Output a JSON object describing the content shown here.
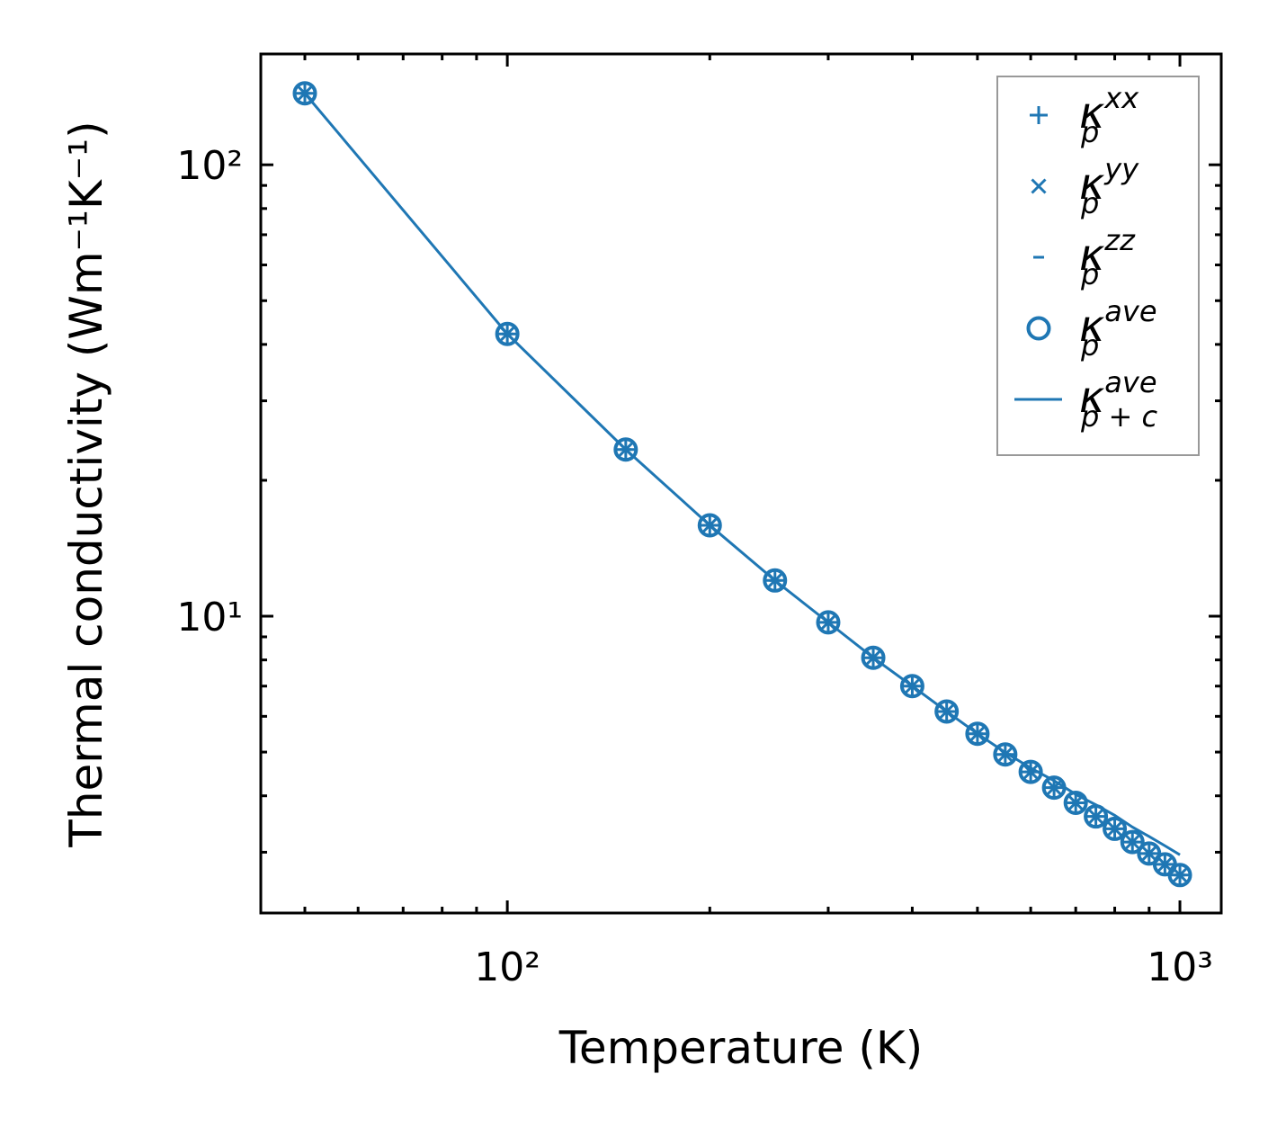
{
  "chart_data": {
    "type": "scatter",
    "title": "",
    "xlabel": "Temperature (K)",
    "ylabel": "Thermal conductivity (Wm⁻¹K⁻¹)",
    "xscale": "log",
    "yscale": "log",
    "xlim": [
      43,
      1152
    ],
    "ylim": [
      2.2,
      176
    ],
    "grid": false,
    "legend_position": "top-right",
    "color": "#1f77b4",
    "xticks": [
      {
        "value": 100,
        "label": "10²"
      },
      {
        "value": 1000,
        "label": "10³"
      }
    ],
    "yticks": [
      {
        "value": 10,
        "label": "10¹"
      },
      {
        "value": 100,
        "label": "10²"
      }
    ],
    "x": [
      50,
      100,
      150,
      200,
      250,
      300,
      350,
      400,
      450,
      500,
      550,
      600,
      650,
      700,
      750,
      800,
      850,
      900,
      950,
      1000
    ],
    "series": [
      {
        "name": "κ_p^xx",
        "marker": "plus",
        "values": [
          144,
          42.2,
          23.4,
          15.9,
          12.0,
          9.69,
          8.09,
          7.0,
          6.15,
          5.49,
          4.94,
          4.52,
          4.17,
          3.86,
          3.6,
          3.38,
          3.16,
          2.98,
          2.82,
          2.67
        ]
      },
      {
        "name": "κ_p^yy",
        "marker": "x",
        "values": [
          144,
          42.2,
          23.4,
          15.9,
          12.0,
          9.69,
          8.09,
          7.0,
          6.15,
          5.49,
          4.94,
          4.52,
          4.17,
          3.86,
          3.6,
          3.38,
          3.16,
          2.98,
          2.82,
          2.67
        ]
      },
      {
        "name": "κ_p^zz",
        "marker": "minus",
        "values": [
          144,
          42.2,
          23.4,
          15.9,
          12.0,
          9.69,
          8.09,
          7.0,
          6.15,
          5.49,
          4.94,
          4.52,
          4.17,
          3.86,
          3.6,
          3.38,
          3.16,
          2.98,
          2.82,
          2.67
        ]
      },
      {
        "name": "κ_p^ave",
        "marker": "circle",
        "values": [
          144,
          42.2,
          23.4,
          15.9,
          12.0,
          9.69,
          8.09,
          7.0,
          6.15,
          5.49,
          4.94,
          4.52,
          4.17,
          3.86,
          3.6,
          3.38,
          3.16,
          2.98,
          2.82,
          2.67
        ]
      },
      {
        "name": "κ_p+c^ave",
        "marker": "line",
        "values": [
          144,
          42.2,
          23.4,
          15.9,
          12.0,
          9.69,
          8.09,
          7.0,
          6.15,
          5.49,
          4.99,
          4.61,
          4.32,
          4.03,
          3.82,
          3.62,
          3.41,
          3.25,
          3.1,
          2.96
        ]
      }
    ],
    "legend": [
      {
        "marker": "plus",
        "base": "κ",
        "sub": "p",
        "sup": "xx"
      },
      {
        "marker": "x",
        "base": "κ",
        "sub": "p",
        "sup": "yy"
      },
      {
        "marker": "minus",
        "base": "κ",
        "sub": "p",
        "sup": "zz"
      },
      {
        "marker": "circle",
        "base": "κ",
        "sub": "p",
        "sup": "ave"
      },
      {
        "marker": "line",
        "base": "κ",
        "sub": "p + c",
        "sup": "ave"
      }
    ]
  }
}
